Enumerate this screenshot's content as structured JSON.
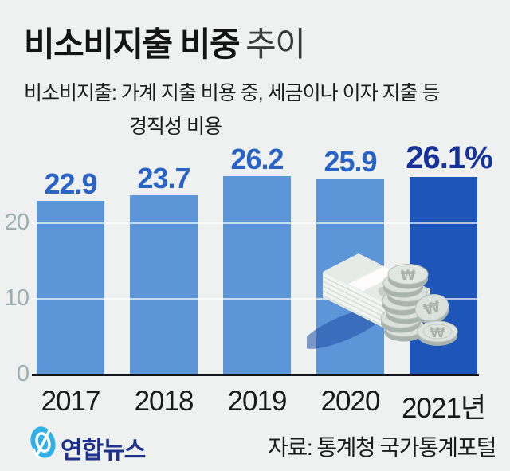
{
  "title": {
    "main": "비소비지출 비중",
    "suffix": "추이"
  },
  "subtitle": {
    "line1": "비소비지출: 가계 지출 비용 중, 세금이나 이자 지출 등",
    "line2": "경직성 비용"
  },
  "chart_data": {
    "type": "bar",
    "categories": [
      "2017",
      "2018",
      "2019",
      "2020",
      "2021년"
    ],
    "values": [
      22.9,
      23.7,
      26.2,
      25.9,
      26.1
    ],
    "value_labels": [
      "22.9",
      "23.7",
      "26.2",
      "25.9",
      "26.1%"
    ],
    "unit": "%",
    "yticks": [
      0,
      10,
      20
    ],
    "ylim": [
      0,
      28
    ],
    "grid": true,
    "highlight_index": 4,
    "bar_color": "#5d96d8",
    "bar_color_highlight": "#1e55b8",
    "value_color": "#2a63c6",
    "value_color_highlight": "#16339b",
    "axis_label_color": "#9cb0b0",
    "tick_label_color": "#1a1a1a",
    "legend": null,
    "title": ""
  },
  "icons": {
    "money": "banknotes-and-coins-icon",
    "logo": "yonhap-news-logo",
    "won_symbol": "₩"
  },
  "footer": {
    "logo_text": "연합뉴스",
    "source": "자료: 통계청 국가통계포털"
  }
}
